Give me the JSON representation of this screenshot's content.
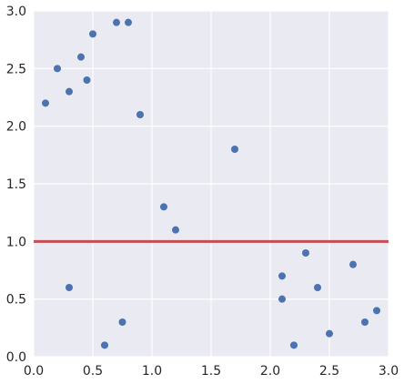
{
  "chart_data": {
    "type": "scatter",
    "title": "",
    "xlabel": "",
    "ylabel": "",
    "xlim": [
      0,
      3
    ],
    "ylim": [
      0,
      3
    ],
    "x_ticks": [
      0.0,
      0.5,
      1.0,
      1.5,
      2.0,
      2.5,
      3.0
    ],
    "y_ticks": [
      0.0,
      0.5,
      1.0,
      1.5,
      2.0,
      2.5,
      3.0
    ],
    "x_tick_labels": [
      "0.0",
      "0.5",
      "1.0",
      "1.5",
      "2.0",
      "2.5",
      "3.0"
    ],
    "y_tick_labels": [
      "0.0",
      "0.5",
      "1.0",
      "1.5",
      "2.0",
      "2.5",
      "3.0"
    ],
    "grid": true,
    "points": [
      {
        "x": 0.1,
        "y": 2.2
      },
      {
        "x": 0.2,
        "y": 2.5
      },
      {
        "x": 0.3,
        "y": 2.3
      },
      {
        "x": 0.3,
        "y": 0.6
      },
      {
        "x": 0.4,
        "y": 2.6
      },
      {
        "x": 0.45,
        "y": 2.4
      },
      {
        "x": 0.5,
        "y": 2.8
      },
      {
        "x": 0.6,
        "y": 0.1
      },
      {
        "x": 0.7,
        "y": 2.9
      },
      {
        "x": 0.75,
        "y": 0.3
      },
      {
        "x": 0.8,
        "y": 2.9
      },
      {
        "x": 0.9,
        "y": 2.1
      },
      {
        "x": 1.1,
        "y": 1.3
      },
      {
        "x": 1.2,
        "y": 1.1
      },
      {
        "x": 1.7,
        "y": 1.8
      },
      {
        "x": 2.1,
        "y": 0.7
      },
      {
        "x": 2.1,
        "y": 0.5
      },
      {
        "x": 2.2,
        "y": 0.1
      },
      {
        "x": 2.3,
        "y": 0.9
      },
      {
        "x": 2.4,
        "y": 0.6
      },
      {
        "x": 2.5,
        "y": 0.2
      },
      {
        "x": 2.7,
        "y": 0.8
      },
      {
        "x": 2.8,
        "y": 0.3
      },
      {
        "x": 2.9,
        "y": 0.4
      }
    ],
    "reference_lines": [
      {
        "orientation": "horizontal",
        "y": 1.0,
        "color": "#c44e52"
      }
    ],
    "colors": {
      "plot_background": "#eaeaf2",
      "grid": "#ffffff",
      "point": "#4c72b0",
      "reference_line": "#c44e52"
    }
  }
}
